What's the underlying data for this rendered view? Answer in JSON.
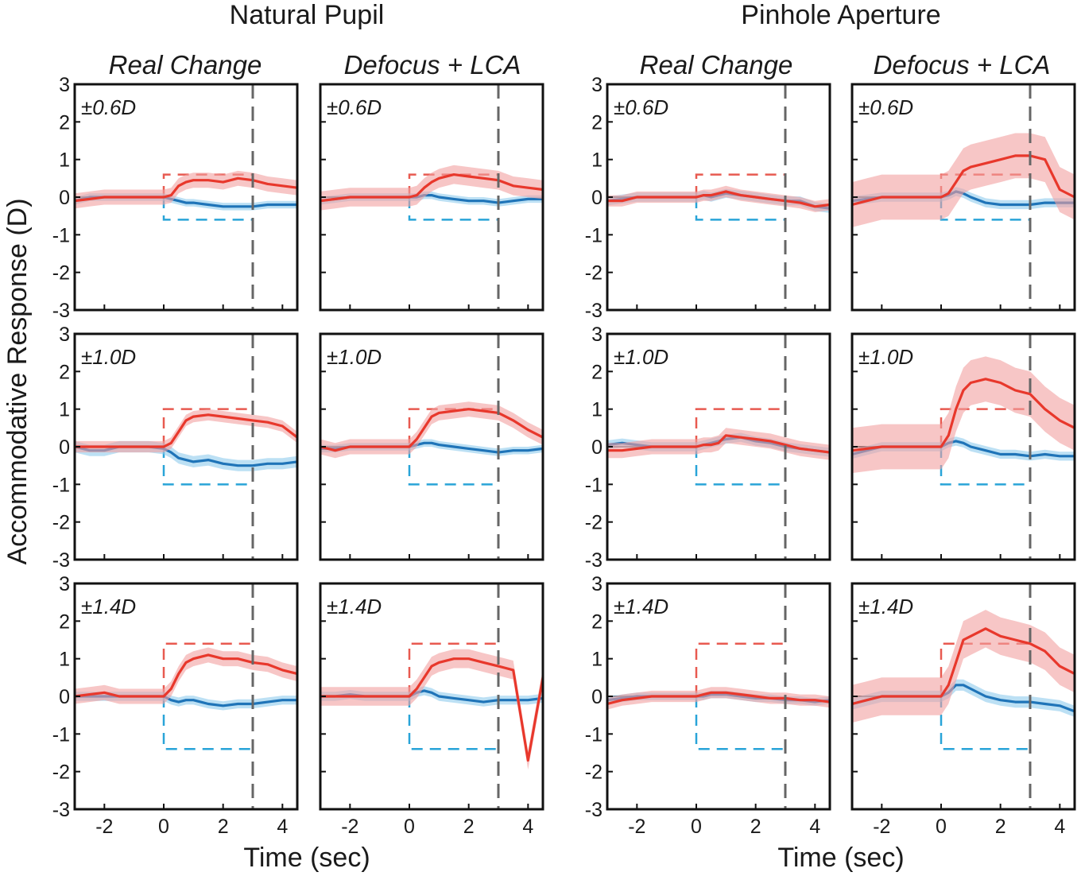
{
  "figure": {
    "groups": [
      "Natural Pupil",
      "Pinhole Aperture"
    ],
    "conditions": [
      "Real Change",
      "Defocus + LCA"
    ],
    "amplitudes": [
      "±0.6D",
      "±1.0D",
      "±1.4D"
    ],
    "ylabel": "Accommodative Response (D)",
    "xlabel": "Time (sec)"
  },
  "colors": {
    "increase": "#e8382c",
    "decrease": "#1f74b8",
    "increase_band": "#f2a0a0",
    "decrease_band": "#8fcbec",
    "step_increase": "#e85a50",
    "step_decrease": "#29a4d8",
    "offset_line": "#666666",
    "frame": "#111111"
  },
  "chart_data": {
    "type": "line",
    "layout": "2 groups x 2 conditions x 3 amplitudes small multiples",
    "xlim": [
      -3,
      4.5
    ],
    "ylim": [
      -3,
      3
    ],
    "xticks": [
      -2,
      0,
      2,
      4
    ],
    "yticks": [
      -3,
      -2,
      -1,
      0,
      1,
      2,
      3
    ],
    "stimulus_onset": 0,
    "stimulus_offset": 3,
    "amplitudes": [
      0.6,
      1.0,
      1.4
    ],
    "series_note": "red = positive step (increase), blue = negative step (decrease); shaded band = confidence interval",
    "x": [
      -3.0,
      -2.5,
      -2.0,
      -1.5,
      -1.0,
      -0.5,
      0.0,
      0.25,
      0.5,
      0.75,
      1.0,
      1.5,
      2.0,
      2.5,
      3.0,
      3.5,
      4.0,
      4.5
    ],
    "panels": [
      {
        "group": "Natural Pupil",
        "condition": "Real Change",
        "amplitude": 0.6,
        "increase": [
          -0.1,
          -0.05,
          0.0,
          0.0,
          0.0,
          0.0,
          0.0,
          0.05,
          0.3,
          0.4,
          0.45,
          0.45,
          0.4,
          0.5,
          0.45,
          0.35,
          0.3,
          0.25
        ],
        "decrease": [
          -0.1,
          0.0,
          0.0,
          0.0,
          0.0,
          0.0,
          0.0,
          -0.05,
          -0.1,
          -0.15,
          -0.15,
          -0.2,
          -0.25,
          -0.25,
          -0.25,
          -0.2,
          -0.2,
          -0.2
        ],
        "increase_ci": 0.2,
        "decrease_ci": 0.1
      },
      {
        "group": "Natural Pupil",
        "condition": "Defocus + LCA",
        "amplitude": 0.6,
        "increase": [
          -0.1,
          -0.05,
          0.0,
          0.0,
          0.0,
          0.0,
          0.0,
          0.05,
          0.25,
          0.4,
          0.5,
          0.6,
          0.55,
          0.5,
          0.45,
          0.3,
          0.25,
          0.2
        ],
        "decrease": [
          -0.1,
          -0.05,
          0.0,
          0.0,
          0.0,
          0.0,
          0.0,
          0.0,
          0.05,
          0.05,
          0.0,
          -0.05,
          -0.1,
          -0.1,
          -0.15,
          -0.1,
          -0.05,
          -0.05
        ],
        "increase_ci": 0.25,
        "decrease_ci": 0.1
      },
      {
        "group": "Natural Pupil",
        "condition": "Real Change",
        "amplitude": 1.0,
        "increase": [
          0.0,
          0.0,
          0.0,
          0.0,
          0.0,
          0.0,
          0.0,
          0.1,
          0.4,
          0.7,
          0.8,
          0.85,
          0.8,
          0.75,
          0.7,
          0.65,
          0.55,
          0.25
        ],
        "decrease": [
          0.0,
          -0.1,
          -0.1,
          0.0,
          0.0,
          0.0,
          -0.05,
          -0.15,
          -0.3,
          -0.35,
          -0.4,
          -0.35,
          -0.45,
          -0.5,
          -0.5,
          -0.45,
          -0.45,
          -0.4
        ],
        "increase_ci": 0.15,
        "decrease_ci": 0.15
      },
      {
        "group": "Natural Pupil",
        "condition": "Defocus + LCA",
        "amplitude": 1.0,
        "increase": [
          0.0,
          -0.1,
          0.0,
          0.0,
          0.0,
          0.0,
          0.0,
          0.2,
          0.5,
          0.8,
          0.9,
          0.95,
          1.0,
          0.95,
          0.9,
          0.7,
          0.45,
          0.25
        ],
        "decrease": [
          -0.05,
          -0.05,
          0.0,
          0.0,
          0.0,
          0.0,
          0.0,
          0.05,
          0.1,
          0.1,
          0.05,
          0.0,
          -0.05,
          -0.1,
          -0.15,
          -0.1,
          -0.1,
          -0.05
        ],
        "increase_ci": 0.2,
        "decrease_ci": 0.1
      },
      {
        "group": "Natural Pupil",
        "condition": "Real Change",
        "amplitude": 1.4,
        "increase": [
          0.0,
          0.05,
          0.1,
          0.0,
          0.0,
          0.0,
          0.0,
          0.2,
          0.6,
          0.9,
          1.0,
          1.1,
          1.0,
          1.0,
          0.9,
          0.85,
          0.7,
          0.6
        ],
        "decrease": [
          0.0,
          0.0,
          0.0,
          0.0,
          0.0,
          0.0,
          0.0,
          -0.1,
          -0.15,
          -0.1,
          -0.1,
          -0.2,
          -0.25,
          -0.2,
          -0.2,
          -0.15,
          -0.1,
          -0.1
        ],
        "increase_ci": 0.2,
        "decrease_ci": 0.12
      },
      {
        "group": "Natural Pupil",
        "condition": "Defocus + LCA",
        "amplitude": 1.4,
        "increase": [
          0.0,
          0.0,
          0.0,
          0.0,
          0.0,
          0.0,
          0.0,
          0.2,
          0.5,
          0.8,
          0.9,
          1.0,
          1.0,
          0.9,
          0.8,
          0.7,
          -1.7,
          0.5
        ],
        "decrease": [
          0.0,
          0.0,
          0.05,
          0.0,
          0.0,
          0.0,
          0.0,
          0.1,
          0.15,
          0.1,
          0.0,
          -0.05,
          -0.1,
          -0.15,
          -0.1,
          -0.1,
          -0.1,
          -0.05
        ],
        "increase_ci": 0.25,
        "decrease_ci": 0.12
      },
      {
        "group": "Pinhole Aperture",
        "condition": "Real Change",
        "amplitude": 0.6,
        "increase": [
          -0.1,
          -0.1,
          0.0,
          0.0,
          0.0,
          0.0,
          0.0,
          0.05,
          0.05,
          0.1,
          0.15,
          0.05,
          0.0,
          -0.05,
          -0.1,
          -0.15,
          -0.25,
          -0.2
        ],
        "decrease": [
          -0.1,
          -0.05,
          0.0,
          0.0,
          0.0,
          0.0,
          0.0,
          0.05,
          0.0,
          0.05,
          0.1,
          0.05,
          0.0,
          -0.05,
          -0.1,
          -0.1,
          -0.25,
          -0.3
        ],
        "increase_ci": 0.15,
        "decrease_ci": 0.12
      },
      {
        "group": "Pinhole Aperture",
        "condition": "Defocus + LCA",
        "amplitude": 0.6,
        "increase": [
          -0.2,
          -0.1,
          0.0,
          0.0,
          0.0,
          0.0,
          0.0,
          0.1,
          0.4,
          0.7,
          0.8,
          0.9,
          1.0,
          1.1,
          1.1,
          1.0,
          0.2,
          0.0
        ],
        "decrease": [
          -0.1,
          -0.05,
          0.0,
          0.0,
          0.0,
          0.0,
          0.0,
          0.05,
          0.15,
          0.1,
          0.0,
          -0.15,
          -0.2,
          -0.2,
          -0.2,
          -0.15,
          -0.15,
          -0.15
        ],
        "increase_ci": 0.6,
        "decrease_ci": 0.12
      },
      {
        "group": "Pinhole Aperture",
        "condition": "Real Change",
        "amplitude": 1.0,
        "increase": [
          -0.1,
          -0.1,
          -0.05,
          0.0,
          0.0,
          0.0,
          0.0,
          0.05,
          0.05,
          0.1,
          0.3,
          0.25,
          0.2,
          0.15,
          0.05,
          -0.05,
          -0.1,
          -0.15
        ],
        "decrease": [
          0.05,
          0.1,
          0.05,
          0.0,
          0.0,
          0.0,
          0.0,
          0.05,
          0.1,
          0.15,
          0.2,
          0.25,
          0.15,
          0.1,
          0.0,
          -0.05,
          -0.1,
          -0.15
        ],
        "increase_ci": 0.2,
        "decrease_ci": 0.12
      },
      {
        "group": "Pinhole Aperture",
        "condition": "Defocus + LCA",
        "amplitude": 1.0,
        "increase": [
          -0.1,
          -0.05,
          0.0,
          0.0,
          0.0,
          0.0,
          0.0,
          0.3,
          1.0,
          1.5,
          1.7,
          1.8,
          1.7,
          1.5,
          1.4,
          1.0,
          0.7,
          0.5
        ],
        "decrease": [
          -0.2,
          -0.1,
          0.0,
          0.0,
          0.0,
          0.0,
          0.0,
          0.1,
          0.15,
          0.1,
          0.0,
          -0.1,
          -0.2,
          -0.2,
          -0.25,
          -0.2,
          -0.25,
          -0.25
        ],
        "increase_ci": 0.6,
        "decrease_ci": 0.12
      },
      {
        "group": "Pinhole Aperture",
        "condition": "Real Change",
        "amplitude": 1.4,
        "increase": [
          -0.2,
          -0.1,
          -0.05,
          0.0,
          0.0,
          0.0,
          0.0,
          0.05,
          0.1,
          0.1,
          0.1,
          0.05,
          0.0,
          -0.05,
          -0.05,
          -0.1,
          -0.1,
          -0.15
        ],
        "decrease": [
          -0.1,
          -0.05,
          0.0,
          0.0,
          0.0,
          0.0,
          0.0,
          0.0,
          0.05,
          0.05,
          0.05,
          0.0,
          -0.05,
          -0.05,
          -0.1,
          -0.1,
          -0.15,
          -0.1
        ],
        "increase_ci": 0.15,
        "decrease_ci": 0.1
      },
      {
        "group": "Pinhole Aperture",
        "condition": "Defocus + LCA",
        "amplitude": 1.4,
        "increase": [
          -0.2,
          -0.1,
          0.0,
          0.0,
          0.0,
          0.0,
          0.0,
          0.3,
          0.9,
          1.5,
          1.6,
          1.8,
          1.6,
          1.5,
          1.4,
          1.2,
          0.8,
          0.6
        ],
        "decrease": [
          -0.2,
          -0.1,
          0.0,
          0.0,
          0.0,
          0.0,
          0.0,
          0.1,
          0.3,
          0.3,
          0.2,
          0.0,
          -0.1,
          -0.15,
          -0.15,
          -0.2,
          -0.25,
          -0.4
        ],
        "increase_ci": 0.5,
        "decrease_ci": 0.15
      }
    ]
  }
}
